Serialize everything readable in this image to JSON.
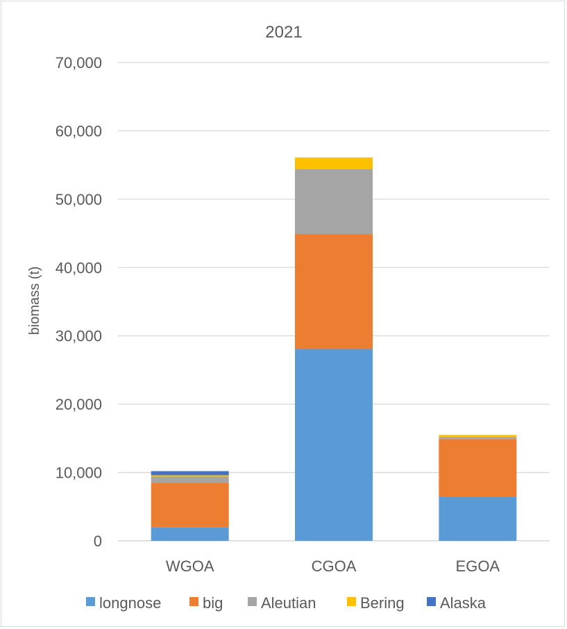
{
  "chart_data": {
    "type": "bar",
    "stacked": true,
    "title": "2021",
    "ylabel": "biomass (t)",
    "xlabel": "",
    "ylim": [
      0,
      70000
    ],
    "yticks": [
      0,
      10000,
      20000,
      30000,
      40000,
      50000,
      60000,
      70000
    ],
    "ytick_labels": [
      "0",
      "10,000",
      "20,000",
      "30,000",
      "40,000",
      "50,000",
      "60,000",
      "70,000"
    ],
    "grid": true,
    "legend_position": "bottom",
    "categories": [
      "WGOA",
      "CGOA",
      "EGOA"
    ],
    "series": [
      {
        "name": "longnose",
        "color": "#5b9bd5",
        "values": [
          2000,
          28100,
          6400
        ]
      },
      {
        "name": "big",
        "color": "#ed7d31",
        "values": [
          6500,
          16800,
          8500
        ]
      },
      {
        "name": "Aleutian",
        "color": "#a5a5a5",
        "values": [
          900,
          9500,
          300
        ]
      },
      {
        "name": "Bering",
        "color": "#ffc000",
        "values": [
          200,
          1700,
          300
        ]
      },
      {
        "name": "Alaska",
        "color": "#4472c4",
        "values": [
          600,
          0,
          0
        ]
      }
    ]
  }
}
